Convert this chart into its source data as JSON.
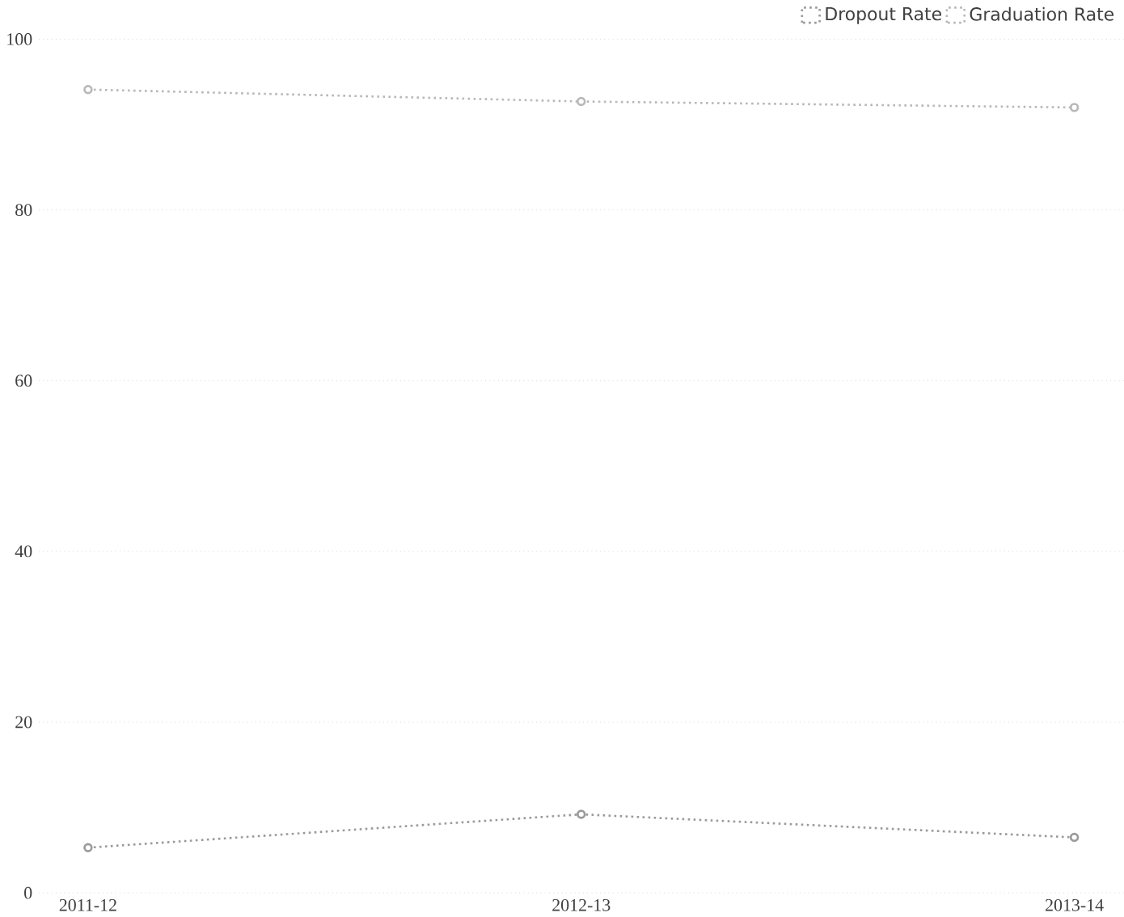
{
  "chart_data": {
    "type": "line",
    "categories": [
      "2011-12",
      "2012-13",
      "2013-14"
    ],
    "series": [
      {
        "name": "Dropout Rate",
        "color": "#9a9a9a",
        "values": [
          5.3,
          9.2,
          6.5
        ]
      },
      {
        "name": "Graduation Rate",
        "color": "#b8b8b8",
        "values": [
          94.1,
          92.7,
          92.0
        ]
      }
    ],
    "ylim": [
      0,
      100
    ],
    "yticks": [
      0,
      20,
      40,
      60,
      80,
      100
    ],
    "grid": "y",
    "legend": "top right",
    "marker": "circle",
    "line_style": "dotted"
  }
}
